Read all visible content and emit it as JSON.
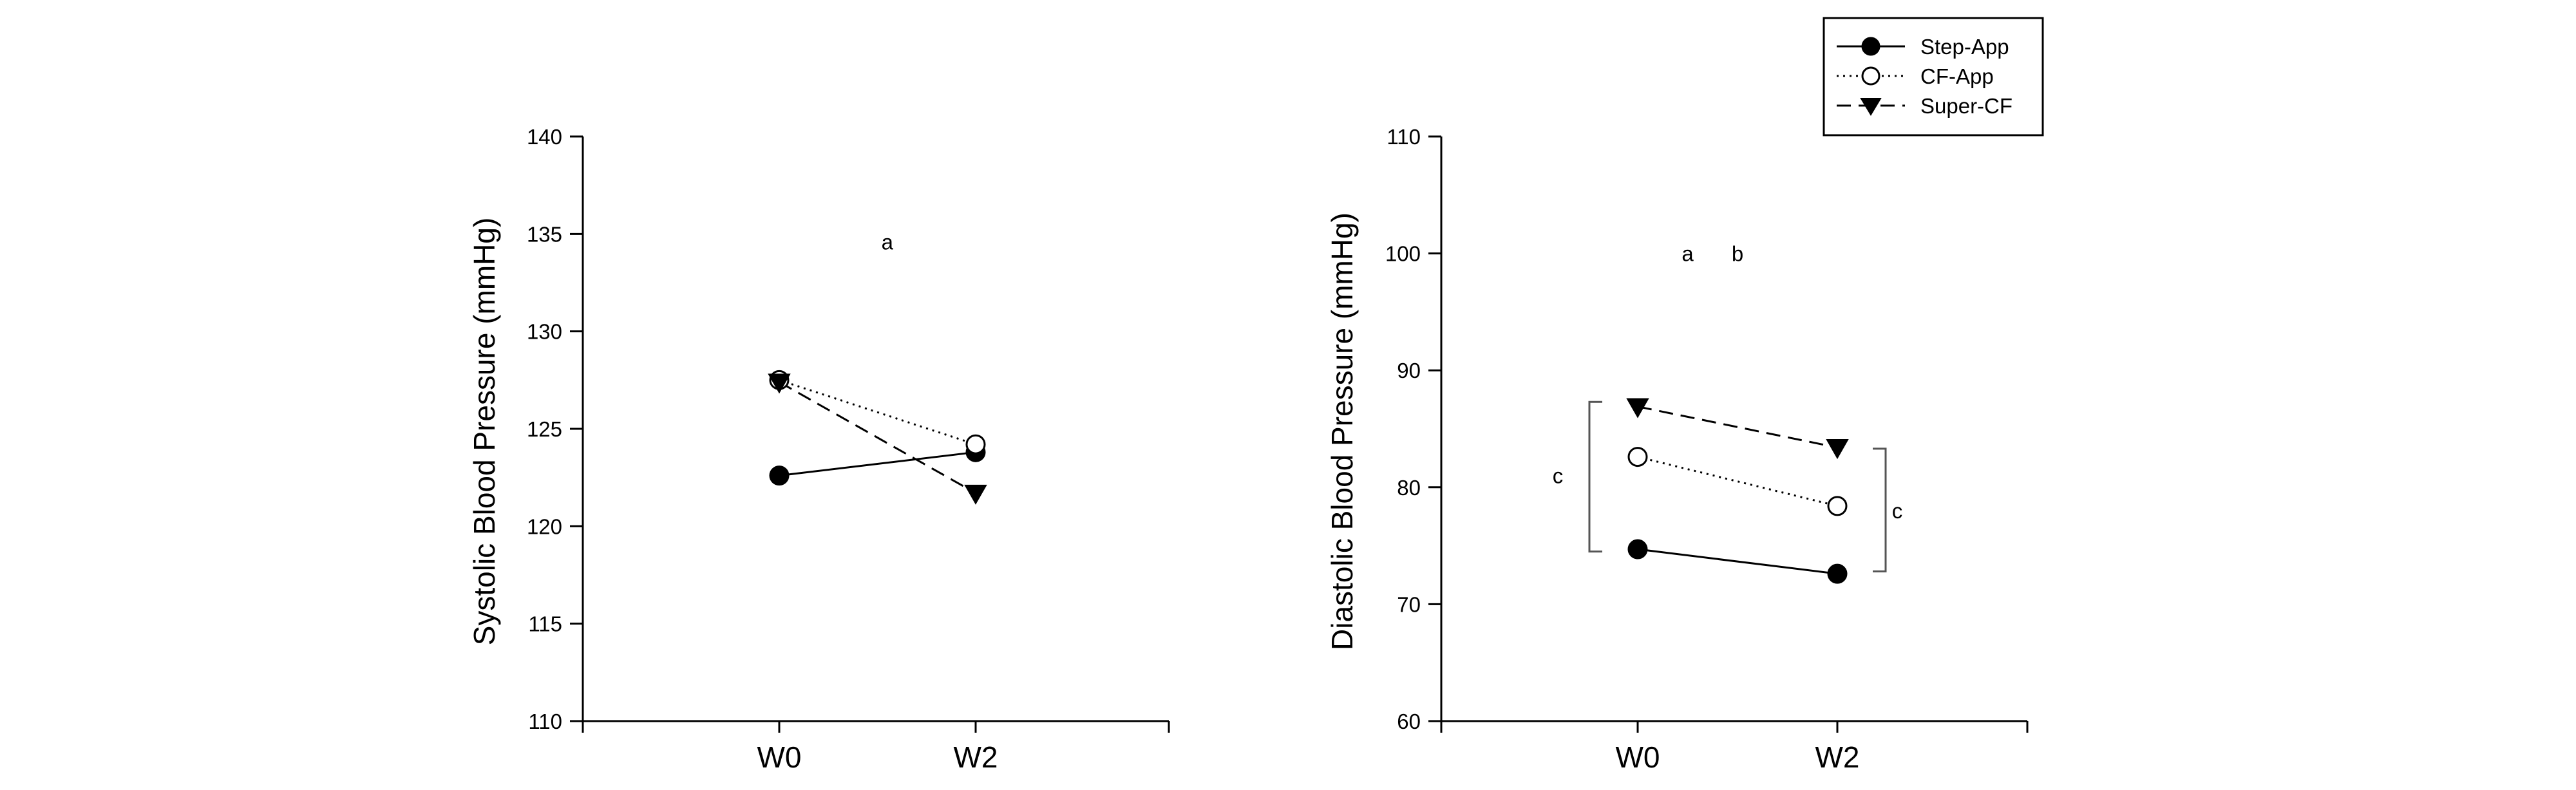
{
  "chart_data": [
    {
      "type": "line",
      "title": "",
      "xlabel": "",
      "ylabel": "Systolic Blood Pressure (mmHg)",
      "categories": [
        "W0",
        "W2"
      ],
      "ylim": [
        110,
        140
      ],
      "yticks": [
        110,
        115,
        120,
        125,
        130,
        135,
        140
      ],
      "grid": false,
      "series": [
        {
          "name": "Step-App",
          "values": [
            122.6,
            123.8
          ],
          "marker": "filled-circle",
          "line": "solid"
        },
        {
          "name": "CF-App",
          "values": [
            127.5,
            124.2
          ],
          "marker": "open-circle",
          "line": "dotted"
        },
        {
          "name": "Super-CF",
          "values": [
            127.4,
            121.7
          ],
          "marker": "filled-triangle-down",
          "line": "dashed"
        }
      ],
      "annotations": [
        {
          "text": "a",
          "x": 0.55,
          "y": 134.6
        }
      ]
    },
    {
      "type": "line",
      "title": "",
      "xlabel": "",
      "ylabel": "Diastolic Blood Pressure (mmHg)",
      "categories": [
        "W0",
        "W2"
      ],
      "ylim": [
        60,
        110
      ],
      "yticks": [
        60,
        70,
        80,
        90,
        100,
        110
      ],
      "grid": false,
      "series": [
        {
          "name": "Step-App",
          "values": [
            74.7,
            72.6
          ],
          "marker": "filled-circle",
          "line": "solid"
        },
        {
          "name": "CF-App",
          "values": [
            82.6,
            78.4
          ],
          "marker": "open-circle",
          "line": "dotted"
        },
        {
          "name": "Super-CF",
          "values": [
            86.9,
            83.4
          ],
          "marker": "filled-triangle-down",
          "line": "dashed"
        }
      ],
      "annotations": [
        {
          "text": "a",
          "x": 0.25,
          "y": 100
        },
        {
          "text": "b",
          "x": 0.5,
          "y": 100
        },
        {
          "text": "c",
          "x": -0.4,
          "y": 81
        },
        {
          "text": "c",
          "x": 1.3,
          "y": 78
        }
      ],
      "brackets": [
        {
          "category": 0,
          "side": "left",
          "range": [
            74.5,
            87.3
          ]
        },
        {
          "category": 1,
          "side": "right",
          "range": [
            72.8,
            83.3
          ]
        }
      ]
    }
  ],
  "legend": {
    "placement": "top-right",
    "entries": [
      "Step-App",
      "CF-App",
      "Super-CF"
    ]
  }
}
